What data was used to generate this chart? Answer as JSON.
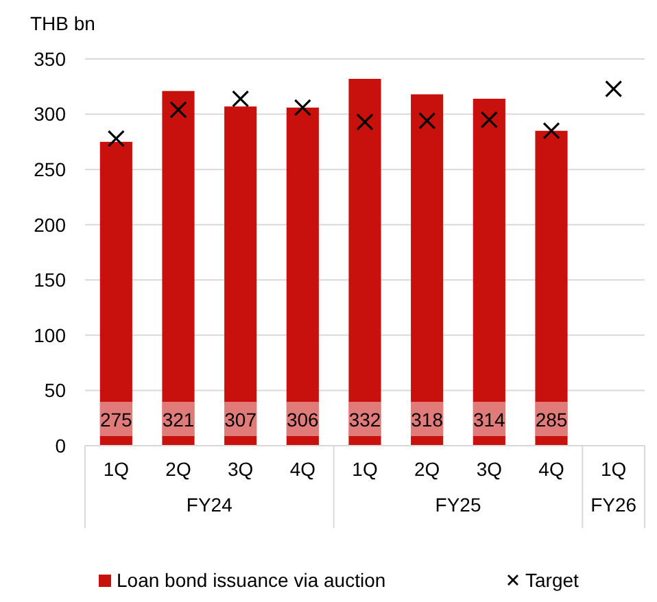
{
  "chart_data": {
    "type": "bar",
    "ylabel": "THB bn",
    "categories": [
      "1Q",
      "2Q",
      "3Q",
      "4Q",
      "1Q",
      "2Q",
      "3Q",
      "4Q",
      "1Q"
    ],
    "series": [
      {
        "name": "Loan bond issuance via auction",
        "color": "#c8100c",
        "values": [
          275,
          321,
          307,
          306,
          332,
          318,
          314,
          285,
          null
        ],
        "value_labels": [
          "275",
          "321",
          "307",
          "306",
          "332",
          "318",
          "314",
          "285",
          null
        ]
      },
      {
        "name": "Target",
        "type": "scatter",
        "marker": "cross",
        "color": "#000000",
        "values": [
          278,
          304,
          314,
          306,
          293,
          294,
          295,
          285,
          323
        ]
      }
    ],
    "ylim": [
      0,
      350
    ],
    "yticks": [
      0,
      50,
      100,
      150,
      200,
      250,
      300,
      350
    ],
    "grid": "y",
    "legend": "bottom",
    "annotations": [
      "FY24",
      "FY25",
      "FY26"
    ]
  }
}
